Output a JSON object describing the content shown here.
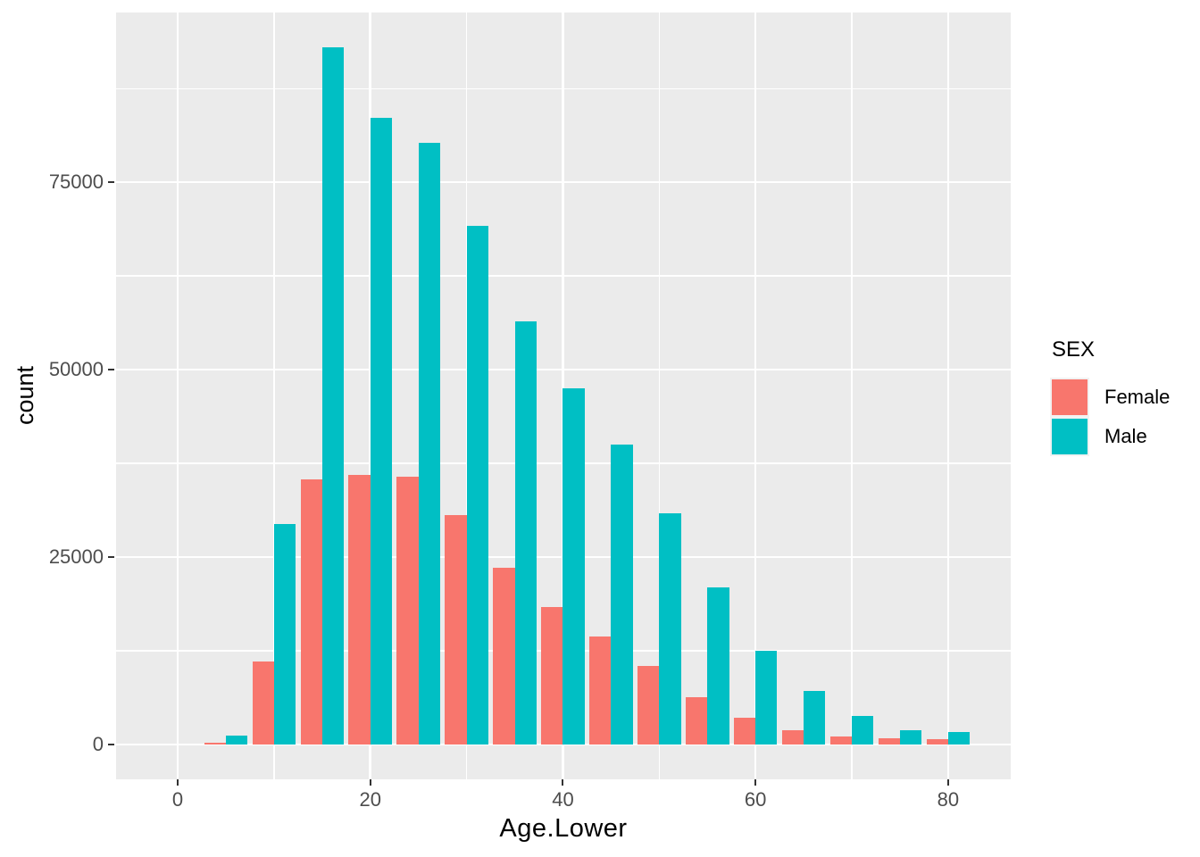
{
  "figure": {
    "x_axis_title": "Age.Lower",
    "y_axis_title": "count"
  },
  "legend": {
    "title": "SEX"
  },
  "colors": {
    "female": "#F8766D",
    "male": "#00BFC4",
    "panel_background": "#EBEBEB",
    "gridline": "#FFFFFF",
    "tick_mark": "#333333",
    "tick_label": "#4D4D4D",
    "axis_title": "#000000"
  },
  "chart_data": {
    "type": "bar",
    "bar_layout": "dodge",
    "title": "",
    "xlabel": "Age.Lower",
    "ylabel": "count",
    "legend_title": "SEX",
    "legend_position": "right",
    "grid": true,
    "categories": [
      5,
      10,
      15,
      20,
      25,
      30,
      35,
      40,
      45,
      50,
      55,
      60,
      65,
      70,
      75,
      80
    ],
    "series": [
      {
        "name": "Female",
        "color": "#F8766D",
        "values": [
          200,
          11100,
          35400,
          36000,
          35700,
          30600,
          23600,
          18300,
          14400,
          10500,
          6300,
          3600,
          1900,
          1100,
          800,
          700
        ]
      },
      {
        "name": "Male",
        "color": "#00BFC4",
        "values": [
          1200,
          29400,
          93000,
          83600,
          80300,
          69200,
          56500,
          47500,
          40000,
          30800,
          20900,
          12500,
          7100,
          3800,
          1900,
          1700
        ]
      }
    ],
    "bar_width_units": 2.25,
    "x_major_ticks": [
      0,
      20,
      40,
      60,
      80
    ],
    "x_minor_gridlines": [
      10,
      30,
      50,
      70
    ],
    "y_major_ticks": [
      0,
      25000,
      50000,
      75000
    ],
    "y_minor_gridlines": [
      12500,
      37500,
      62500,
      87500
    ],
    "xlim": [
      -6.4,
      86.5
    ],
    "ylim": [
      -4650,
      97650
    ]
  }
}
